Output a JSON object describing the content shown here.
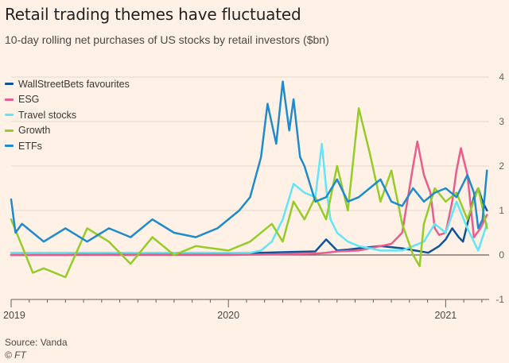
{
  "header": {
    "title": "Retail trading themes have fluctuated",
    "subtitle": "10-day rolling net purchases of US stocks by retail investors ($bn)"
  },
  "footer": {
    "source": "Source: Vanda",
    "credit": "© FT"
  },
  "chart_data": {
    "type": "line",
    "title": "Retail trading themes have fluctuated",
    "subtitle": "10-day rolling net purchases of US stocks by retail investors ($bn)",
    "xlabel": "",
    "ylabel": "",
    "xlim": [
      2019.0,
      2021.2
    ],
    "ylim": [
      -1,
      4
    ],
    "yticks": [
      4,
      3,
      2,
      1,
      0,
      -1
    ],
    "xtick_labels": [
      {
        "x": 2019,
        "label": "2019"
      },
      {
        "x": 2020,
        "label": "2020"
      },
      {
        "x": 2021,
        "label": "2021"
      }
    ],
    "grid": "horizontal",
    "legend_position": "top-left",
    "series": [
      {
        "name": "WallStreetBets favourites",
        "color": "#0f5499",
        "x": [
          2019.0,
          2019.25,
          2019.5,
          2019.75,
          2020.0,
          2020.15,
          2020.3,
          2020.4,
          2020.45,
          2020.5,
          2020.55,
          2020.6,
          2020.7,
          2020.8,
          2020.86,
          2020.92,
          2020.97,
          2021.0,
          2021.03,
          2021.06,
          2021.08,
          2021.1,
          2021.13,
          2021.15,
          2021.17,
          2021.19
        ],
        "y": [
          0.0,
          0.0,
          0.02,
          0.03,
          0.04,
          0.05,
          0.07,
          0.08,
          0.35,
          0.1,
          0.12,
          0.15,
          0.2,
          0.15,
          0.1,
          0.05,
          0.2,
          0.35,
          0.6,
          0.4,
          0.3,
          0.7,
          1.3,
          1.5,
          1.2,
          1.0
        ]
      },
      {
        "name": "ESG",
        "color": "#e95d8c",
        "x": [
          2019.0,
          2019.5,
          2020.0,
          2020.3,
          2020.4,
          2020.45,
          2020.5,
          2020.6,
          2020.7,
          2020.75,
          2020.8,
          2020.85,
          2020.87,
          2020.9,
          2020.93,
          2020.95,
          2020.97,
          2021.0,
          2021.03,
          2021.05,
          2021.07,
          2021.1,
          2021.13,
          2021.16,
          2021.19
        ],
        "y": [
          0.0,
          0.0,
          0.0,
          0.02,
          0.03,
          0.05,
          0.08,
          0.1,
          0.2,
          0.25,
          0.5,
          2.0,
          2.55,
          1.8,
          1.4,
          0.6,
          0.45,
          0.5,
          1.2,
          1.9,
          2.4,
          1.8,
          0.4,
          0.6,
          0.9
        ]
      },
      {
        "name": "Travel stocks",
        "color": "#62e6f7",
        "x": [
          2019.0,
          2019.25,
          2019.5,
          2019.75,
          2020.0,
          2020.1,
          2020.15,
          2020.2,
          2020.25,
          2020.3,
          2020.35,
          2020.4,
          2020.43,
          2020.45,
          2020.47,
          2020.5,
          2020.55,
          2020.6,
          2020.7,
          2020.8,
          2020.9,
          2020.95,
          2021.0,
          2021.05,
          2021.1,
          2021.15,
          2021.19
        ],
        "y": [
          0.05,
          0.05,
          0.05,
          0.05,
          0.05,
          0.05,
          0.1,
          0.3,
          0.8,
          1.6,
          1.4,
          1.3,
          2.5,
          1.5,
          0.8,
          0.5,
          0.3,
          0.2,
          0.1,
          0.1,
          0.3,
          0.7,
          0.5,
          1.2,
          0.6,
          0.1,
          0.7
        ]
      },
      {
        "name": "Growth",
        "color": "#96cc28",
        "x": [
          2019.0,
          2019.05,
          2019.1,
          2019.15,
          2019.25,
          2019.35,
          2019.45,
          2019.55,
          2019.65,
          2019.75,
          2019.85,
          2020.0,
          2020.1,
          2020.2,
          2020.25,
          2020.3,
          2020.35,
          2020.4,
          2020.45,
          2020.5,
          2020.55,
          2020.6,
          2020.65,
          2020.7,
          2020.75,
          2020.8,
          2020.85,
          2020.88,
          2020.9,
          2020.95,
          2021.0,
          2021.05,
          2021.1,
          2021.15,
          2021.19
        ],
        "y": [
          0.8,
          0.2,
          -0.4,
          -0.3,
          -0.5,
          0.6,
          0.3,
          -0.2,
          0.4,
          0.0,
          0.2,
          0.1,
          0.3,
          0.7,
          0.3,
          1.2,
          0.8,
          1.3,
          0.8,
          2.0,
          1.0,
          3.3,
          2.3,
          1.2,
          1.9,
          0.7,
          0.0,
          -0.25,
          0.7,
          1.5,
          1.2,
          1.4,
          0.8,
          1.5,
          0.6
        ]
      },
      {
        "name": "ETFs",
        "color": "#1f8acc",
        "x": [
          2019.0,
          2019.02,
          2019.05,
          2019.1,
          2019.15,
          2019.25,
          2019.35,
          2019.45,
          2019.55,
          2019.65,
          2019.75,
          2019.85,
          2019.95,
          2020.05,
          2020.1,
          2020.15,
          2020.18,
          2020.22,
          2020.25,
          2020.28,
          2020.3,
          2020.33,
          2020.35,
          2020.4,
          2020.45,
          2020.5,
          2020.55,
          2020.6,
          2020.65,
          2020.7,
          2020.75,
          2020.8,
          2020.85,
          2020.9,
          2020.95,
          2021.0,
          2021.05,
          2021.1,
          2021.13,
          2021.15,
          2021.17,
          2021.19
        ],
        "y": [
          1.25,
          0.5,
          0.7,
          0.5,
          0.3,
          0.6,
          0.3,
          0.6,
          0.4,
          0.8,
          0.5,
          0.4,
          0.6,
          1.0,
          1.3,
          2.2,
          3.4,
          2.5,
          3.9,
          2.8,
          3.5,
          2.2,
          2.0,
          1.2,
          1.3,
          1.7,
          1.2,
          1.3,
          1.5,
          1.7,
          1.2,
          1.1,
          1.5,
          1.2,
          1.4,
          1.5,
          1.3,
          1.8,
          1.4,
          0.6,
          0.8,
          1.9
        ]
      }
    ]
  }
}
